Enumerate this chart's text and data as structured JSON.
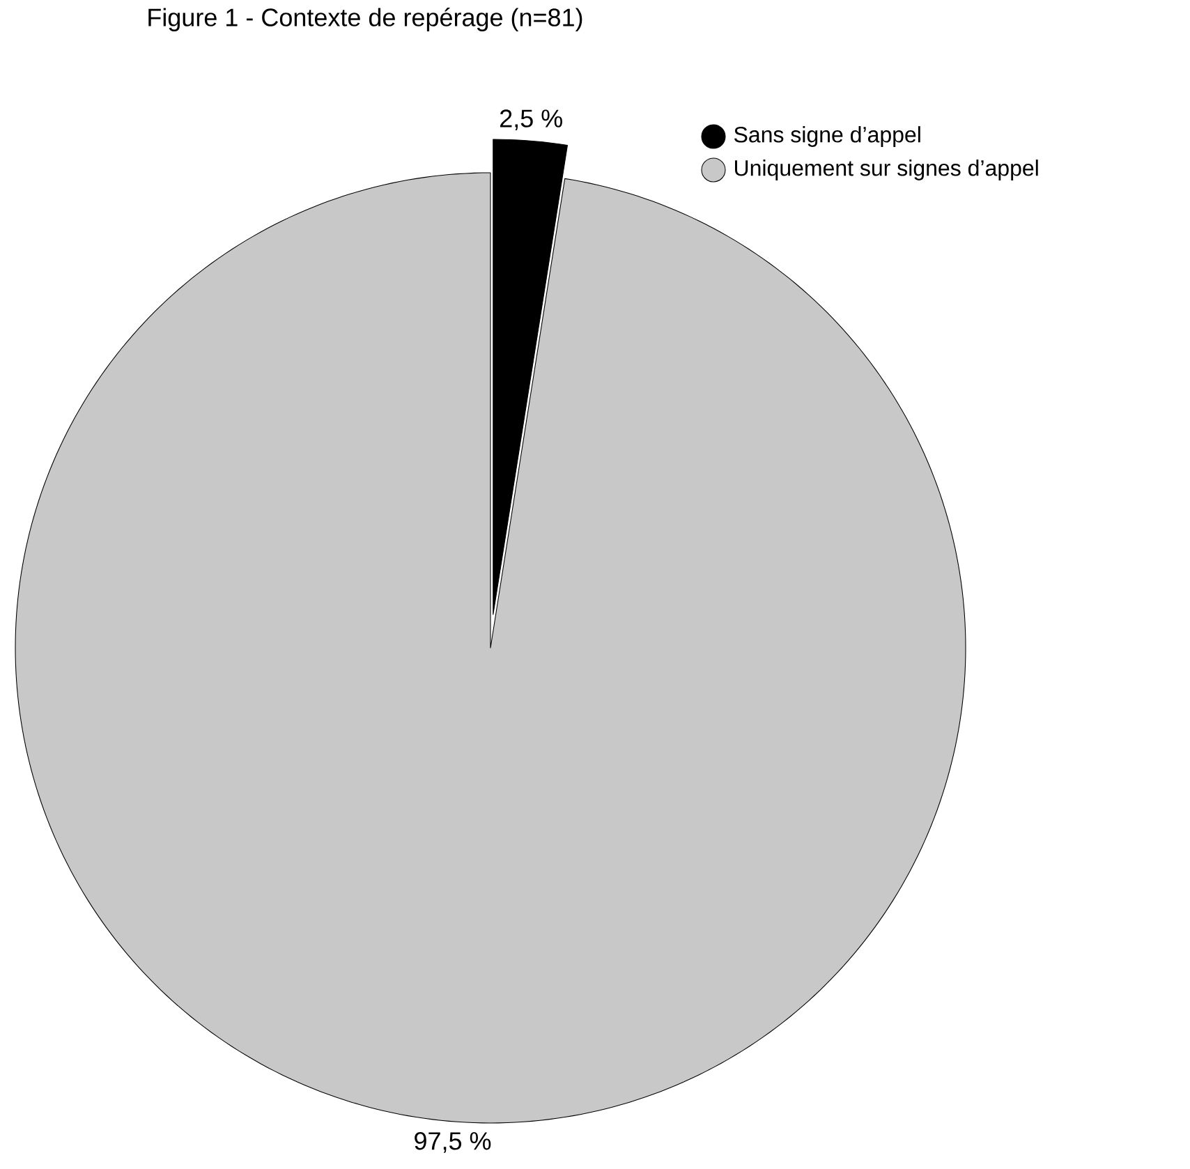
{
  "chart_data": {
    "type": "pie",
    "title": "Figure 1 - Contexte de repérage (n=81)",
    "categories": [
      "Sans signe d’appel",
      "Uniquement sur signes d’appel"
    ],
    "values": [
      2.5,
      97.5
    ],
    "colors": [
      "#000000",
      "#c8c8c8"
    ],
    "value_labels": [
      "2,5 %",
      "97,5 %"
    ],
    "legend": "top right"
  }
}
